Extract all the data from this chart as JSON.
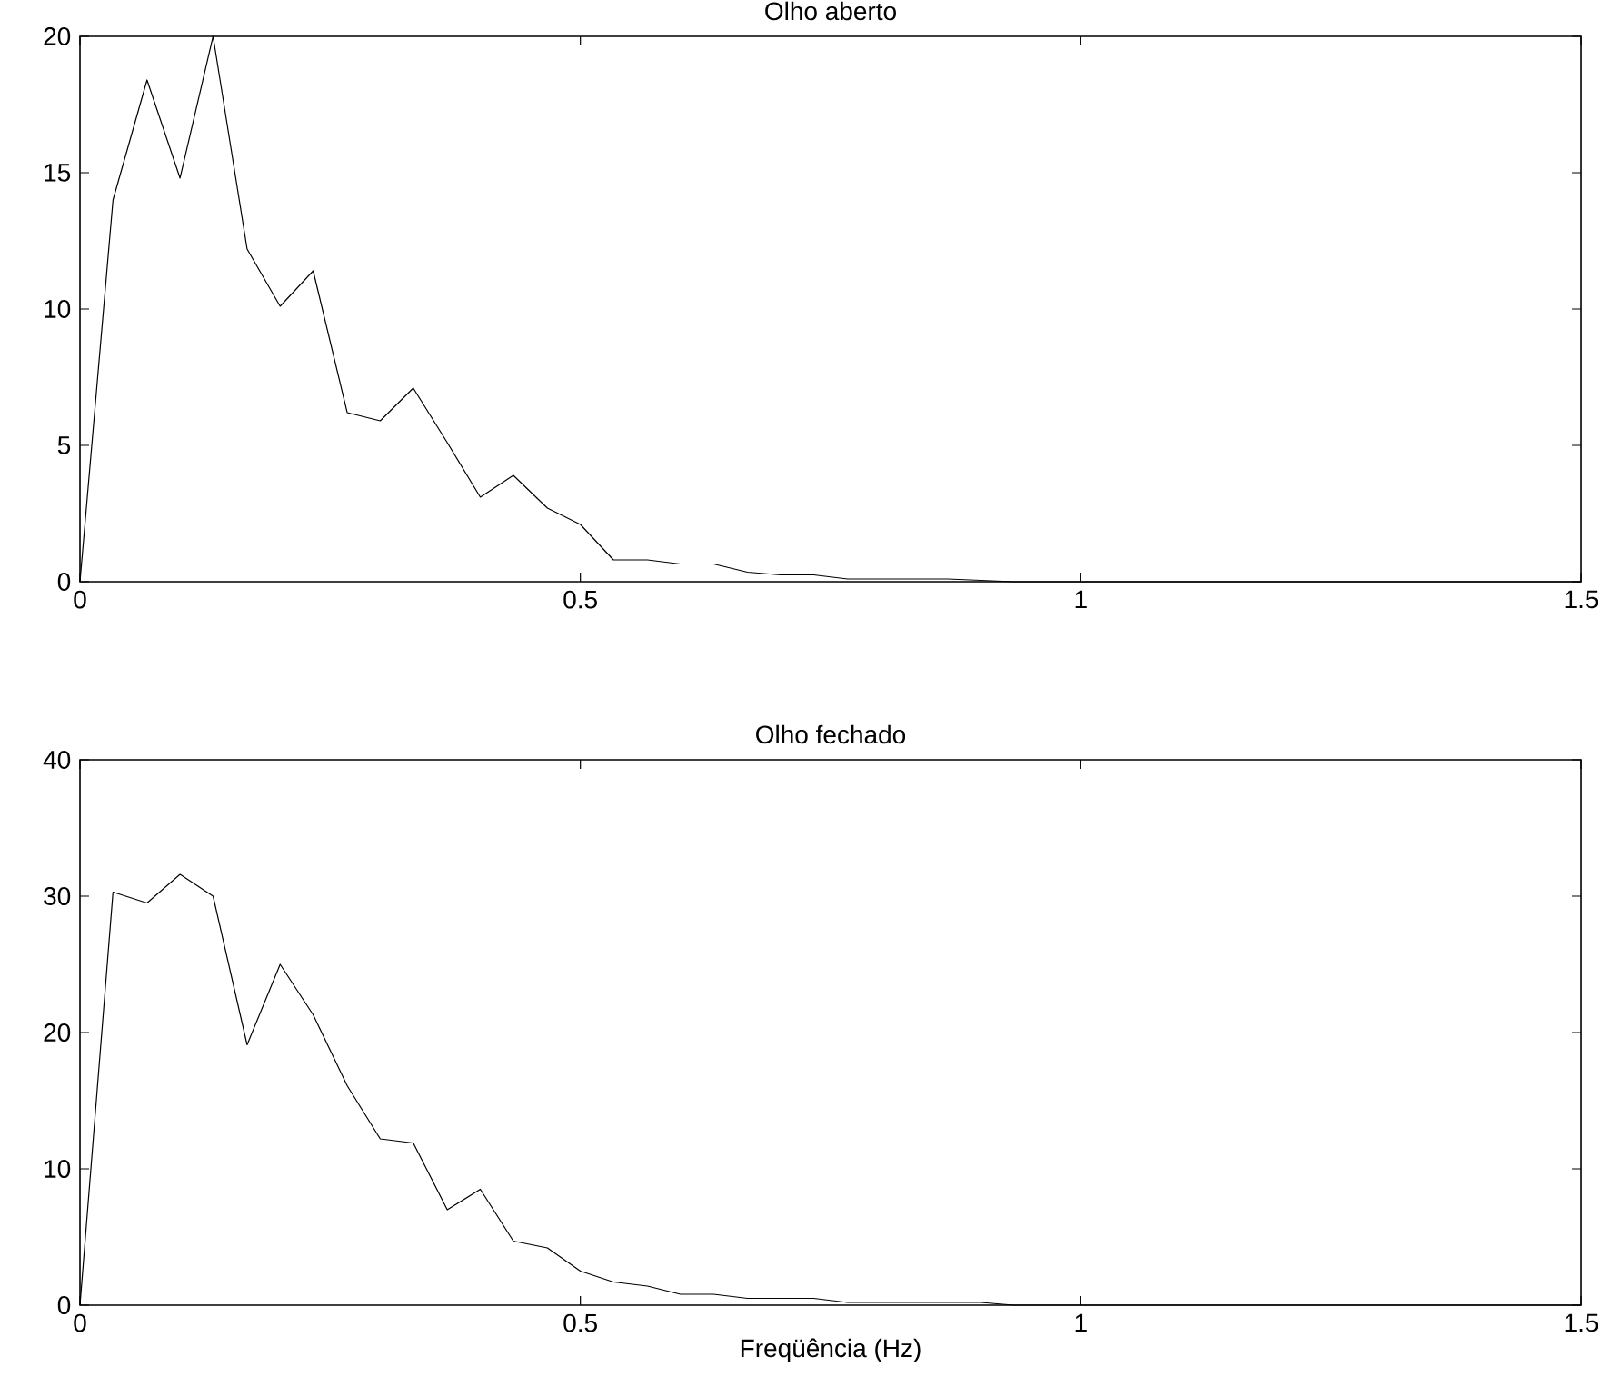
{
  "chart_data": [
    {
      "type": "line",
      "title": "Olho aberto",
      "x": [
        0,
        0.033,
        0.067,
        0.1,
        0.133,
        0.167,
        0.2,
        0.233,
        0.267,
        0.3,
        0.333,
        0.367,
        0.4,
        0.433,
        0.467,
        0.5,
        0.533,
        0.567,
        0.6,
        0.633,
        0.667,
        0.7,
        0.733,
        0.767,
        0.8,
        0.833,
        0.867,
        0.9,
        0.933,
        1.5
      ],
      "series": [
        {
          "color": "#000000",
          "values": [
            0,
            14,
            18.4,
            14.8,
            20,
            12.2,
            10.1,
            11.4,
            6.2,
            5.9,
            7.1,
            5.1,
            3.1,
            3.9,
            2.7,
            2.1,
            0.8,
            0.8,
            0.65,
            0.65,
            0.35,
            0.25,
            0.25,
            0.1,
            0.1,
            0.1,
            0.1,
            0.05,
            0,
            0
          ]
        }
      ],
      "xlim": [
        0,
        1.5
      ],
      "ylim": [
        0,
        20
      ],
      "xticks": [
        0,
        0.5,
        1,
        1.5
      ],
      "yticks": [
        0,
        5,
        10,
        15,
        20
      ]
    },
    {
      "type": "line",
      "title": "Olho fechado",
      "xlabel": "Freqüência (Hz)",
      "x": [
        0,
        0.033,
        0.067,
        0.1,
        0.133,
        0.167,
        0.2,
        0.233,
        0.267,
        0.3,
        0.333,
        0.367,
        0.4,
        0.433,
        0.467,
        0.5,
        0.533,
        0.567,
        0.6,
        0.633,
        0.667,
        0.7,
        0.733,
        0.767,
        0.8,
        0.833,
        0.867,
        0.9,
        0.933,
        1.5
      ],
      "series": [
        {
          "color": "#000000",
          "values": [
            0,
            30.3,
            29.5,
            31.6,
            30,
            19.1,
            25,
            21.3,
            16.1,
            12.2,
            11.9,
            7,
            8.5,
            4.7,
            4.2,
            2.5,
            1.7,
            1.4,
            0.8,
            0.8,
            0.5,
            0.5,
            0.5,
            0.2,
            0.2,
            0.2,
            0.2,
            0.2,
            0,
            0
          ]
        }
      ],
      "xlim": [
        0,
        1.5
      ],
      "ylim": [
        0,
        40
      ],
      "xticks": [
        0,
        0.5,
        1,
        1.5
      ],
      "yticks": [
        0,
        10,
        20,
        30,
        40
      ]
    }
  ]
}
